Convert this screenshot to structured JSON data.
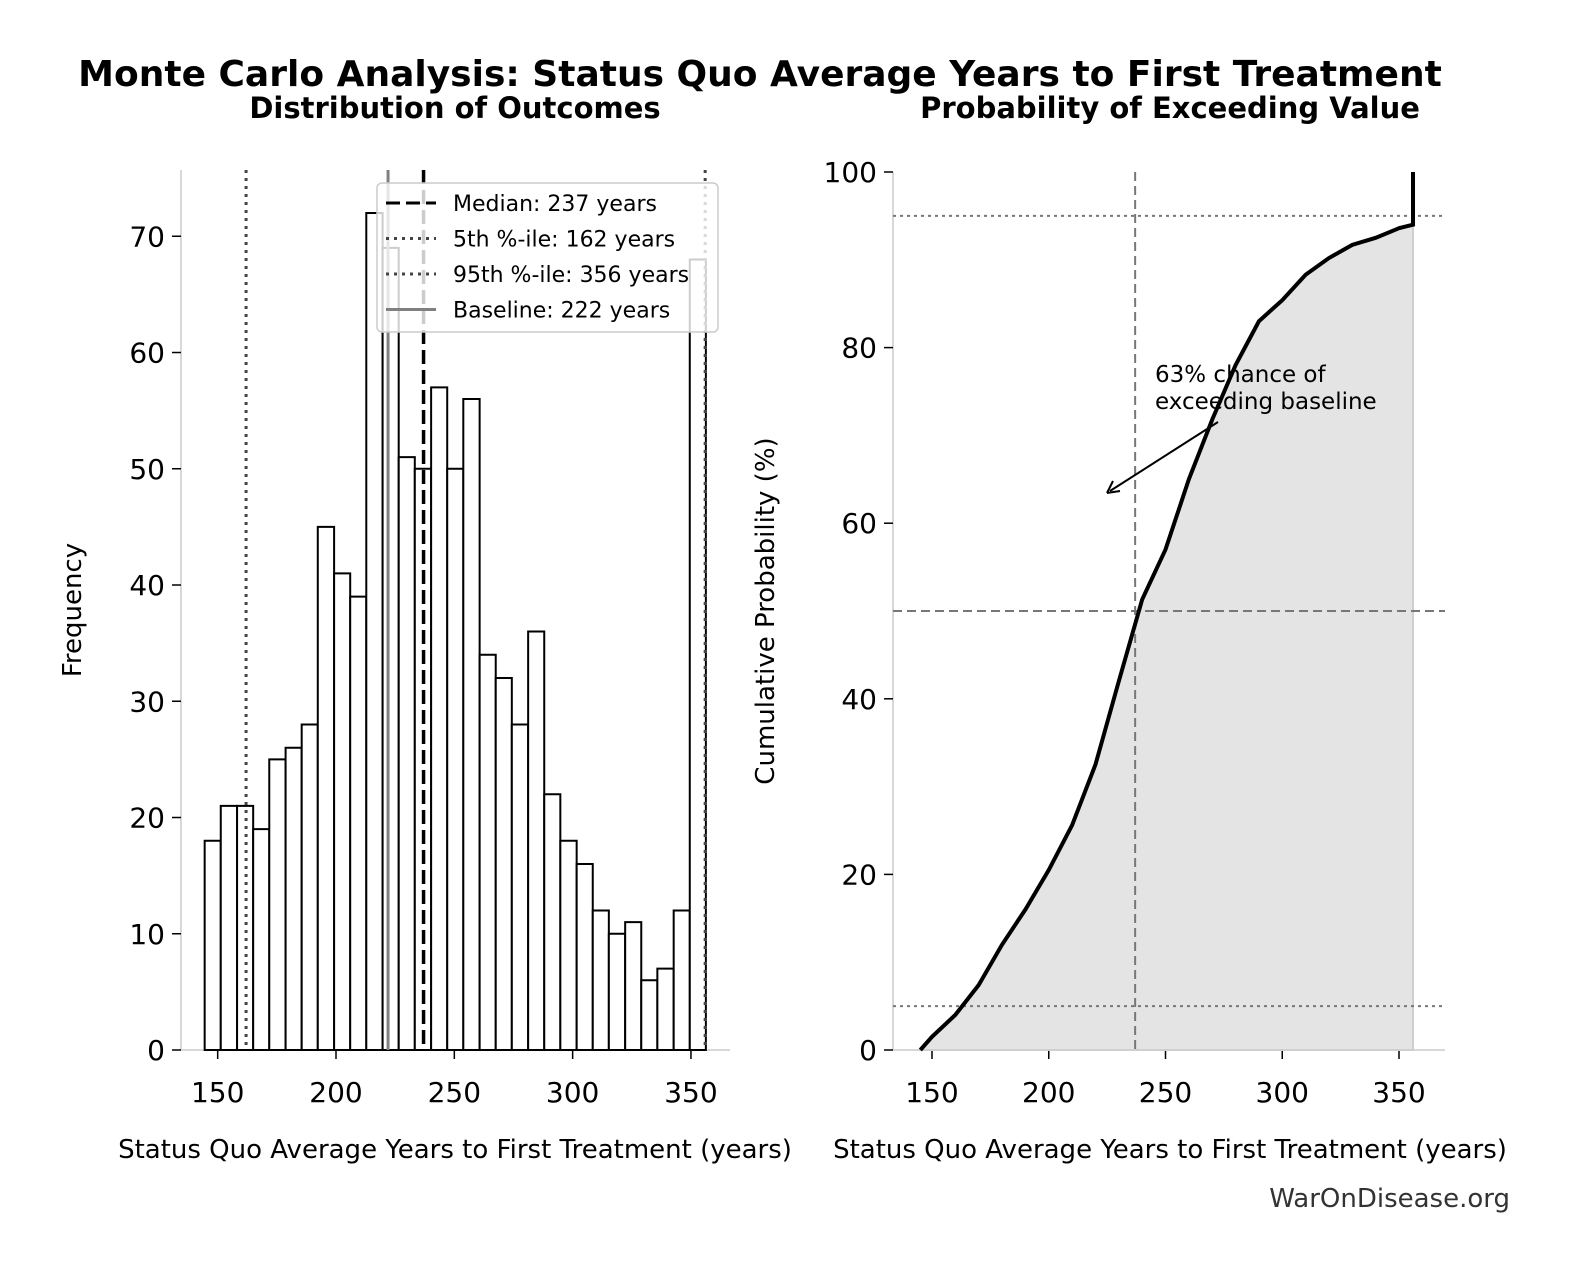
{
  "title": "Monte Carlo Analysis: Status Quo Average Years to First Treatment",
  "watermark": "WarOnDisease.org",
  "chart_data": [
    {
      "type": "histogram",
      "title": "Distribution of Outcomes",
      "xlabel": "Status Quo Average Years to First Treatment (years)",
      "ylabel": "Frequency",
      "bins": [
        144.5,
        151.3,
        158.2,
        165.0,
        171.8,
        178.7,
        185.5,
        192.3,
        199.2,
        206.0,
        212.8,
        219.7,
        226.5,
        233.3,
        240.2,
        247.0,
        253.8,
        260.7,
        267.5,
        274.3,
        281.2,
        288.0,
        294.8,
        301.7,
        308.5,
        315.3,
        322.2,
        329.0,
        335.8,
        342.7,
        349.5,
        356.3
      ],
      "values": [
        18,
        21,
        21,
        19,
        25,
        26,
        28,
        45,
        41,
        39,
        72,
        69,
        51,
        50,
        57,
        50,
        56,
        34,
        32,
        28,
        36,
        22,
        18,
        16,
        12,
        10,
        11,
        6,
        7,
        12,
        68
      ],
      "color": "#ffffff",
      "edgecolor": "#000000",
      "xlim": [
        134.5,
        366.5
      ],
      "ylim": [
        0,
        75.7
      ],
      "xticks": [
        150,
        200,
        250,
        300,
        350
      ],
      "yticks": [
        0,
        10,
        20,
        30,
        40,
        50,
        60,
        70
      ],
      "legend": "upper right",
      "series": [
        {
          "name": "Median: 237 years",
          "value": 237,
          "color": "#000000",
          "dash": "dashed"
        },
        {
          "name": "5th %-ile: 162 years",
          "value": 162,
          "color": "#444444",
          "dash": "dotted"
        },
        {
          "name": "95th %-ile: 356 years",
          "value": 356,
          "color": "#444444",
          "dash": "dotted"
        },
        {
          "name": "Baseline: 222 years",
          "value": 222,
          "color": "#808080",
          "dash": "solid"
        }
      ]
    },
    {
      "type": "line",
      "title": "Probability of Exceeding Value",
      "xlabel": "Status Quo Average Years to First Treatment (years)",
      "ylabel": "Cumulative Probability (%)",
      "x": [
        145,
        150,
        160,
        170,
        180,
        190,
        200,
        210,
        220,
        230,
        240,
        250,
        260,
        270,
        280,
        290,
        300,
        310,
        320,
        330,
        340,
        350,
        356,
        356
      ],
      "values": [
        0,
        1.5,
        4,
        7.4,
        12,
        16,
        20.5,
        25.6,
        32.5,
        42,
        51.3,
        57,
        65,
        71.8,
        78,
        83,
        85.4,
        88.3,
        90.2,
        91.7,
        92.5,
        93.6,
        94,
        100
      ],
      "color": "#000000",
      "fill": "#e4e4e4",
      "xlim": [
        133.3,
        369.7
      ],
      "ylim": [
        0,
        100
      ],
      "xticks": [
        150,
        200,
        250,
        300,
        350
      ],
      "yticks": [
        0,
        20,
        40,
        60,
        80,
        100
      ],
      "hlines": [
        5,
        50,
        95
      ],
      "vlines": [
        237
      ],
      "annotation": [
        "63% chance of",
        "exceeding baseline"
      ]
    }
  ]
}
